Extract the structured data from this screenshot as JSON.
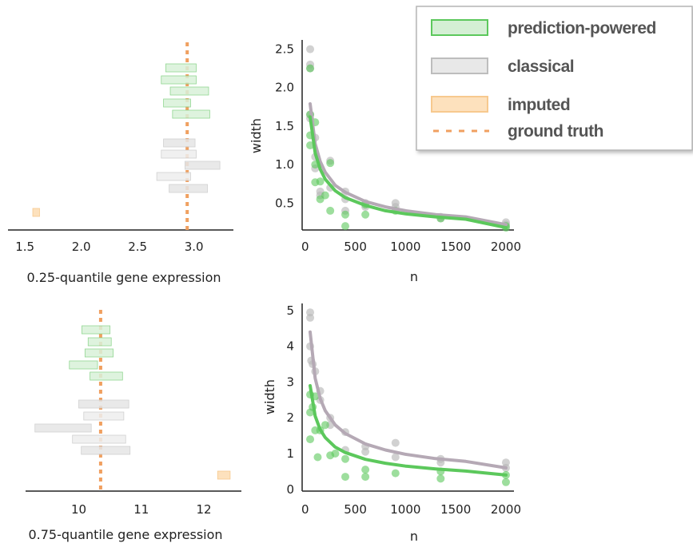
{
  "colors": {
    "ppi": "#5cc85c",
    "classical": "#b0b0b0",
    "imputed": "#f7b562",
    "truth": "#f0a060"
  },
  "legend": {
    "items": [
      {
        "key": "ppi",
        "label": "prediction-powered"
      },
      {
        "key": "classical",
        "label": "classical"
      },
      {
        "key": "imputed",
        "label": "imputed"
      },
      {
        "key": "truth",
        "label": "ground truth"
      }
    ]
  },
  "chart_data": [
    {
      "type": "interval",
      "panel": "q25-intervals",
      "xlabel": "0.25-quantile gene expression",
      "xticks": [
        1.5,
        2.0,
        2.5,
        3.0
      ],
      "xlim": [
        1.35,
        3.35
      ],
      "ground_truth": 2.94,
      "ppi": [
        [
          2.75,
          3.02
        ],
        [
          2.71,
          3.02
        ],
        [
          2.79,
          3.13
        ],
        [
          2.73,
          2.97
        ],
        [
          2.81,
          3.14
        ]
      ],
      "classical": [
        [
          2.73,
          3.01
        ],
        [
          2.71,
          3.02
        ],
        [
          2.92,
          3.23
        ],
        [
          2.67,
          2.97
        ],
        [
          2.78,
          3.12
        ]
      ],
      "imputed": [
        [
          1.57,
          1.63
        ]
      ]
    },
    {
      "type": "scatter+line",
      "panel": "q25-width",
      "xlabel": "n",
      "ylabel": "width",
      "xticks": [
        0,
        500,
        1000,
        1500,
        2000
      ],
      "yticks": [
        0.5,
        1.0,
        1.5,
        2.0,
        2.5
      ],
      "xlim": [
        -30,
        2080
      ],
      "ylim": [
        0.15,
        2.62
      ],
      "n": [
        50,
        100,
        150,
        250,
        400,
        600,
        900,
        1350,
        2000
      ],
      "classical_points": [
        [
          50,
          2.5
        ],
        [
          50,
          2.3
        ],
        [
          50,
          1.65
        ],
        [
          50,
          2.25
        ],
        [
          50,
          1.6
        ],
        [
          100,
          1.35
        ],
        [
          100,
          1.1
        ],
        [
          100,
          0.95
        ],
        [
          150,
          0.65
        ],
        [
          150,
          0.6
        ],
        [
          250,
          1.05
        ],
        [
          250,
          0.7
        ],
        [
          400,
          0.55
        ],
        [
          400,
          0.65
        ],
        [
          400,
          0.4
        ],
        [
          600,
          0.5
        ],
        [
          600,
          0.45
        ],
        [
          900,
          0.5
        ],
        [
          900,
          0.45
        ],
        [
          1350,
          0.3
        ],
        [
          1350,
          0.32
        ],
        [
          2000,
          0.22
        ],
        [
          2000,
          0.25
        ]
      ],
      "ppi_points": [
        [
          50,
          2.25
        ],
        [
          50,
          1.25
        ],
        [
          50,
          1.65
        ],
        [
          50,
          1.38
        ],
        [
          100,
          0.77
        ],
        [
          100,
          1.0
        ],
        [
          100,
          1.55
        ],
        [
          150,
          0.55
        ],
        [
          150,
          0.78
        ],
        [
          200,
          0.6
        ],
        [
          250,
          1.02
        ],
        [
          250,
          0.4
        ],
        [
          400,
          0.2
        ],
        [
          400,
          0.35
        ],
        [
          600,
          0.35
        ],
        [
          600,
          0.48
        ],
        [
          900,
          0.4
        ],
        [
          1350,
          0.3
        ],
        [
          2000,
          0.18
        ],
        [
          2000,
          0.2
        ]
      ],
      "classical_curve": [
        [
          50,
          1.79
        ],
        [
          100,
          1.27
        ],
        [
          150,
          1.04
        ],
        [
          200,
          0.9
        ],
        [
          300,
          0.73
        ],
        [
          400,
          0.64
        ],
        [
          600,
          0.52
        ],
        [
          800,
          0.45
        ],
        [
          1000,
          0.4
        ],
        [
          1300,
          0.35
        ],
        [
          1600,
          0.32
        ],
        [
          2000,
          0.22
        ]
      ],
      "ppi_curve": [
        [
          50,
          1.62
        ],
        [
          100,
          1.15
        ],
        [
          150,
          0.94
        ],
        [
          200,
          0.81
        ],
        [
          300,
          0.66
        ],
        [
          400,
          0.57
        ],
        [
          600,
          0.47
        ],
        [
          800,
          0.4
        ],
        [
          1000,
          0.36
        ],
        [
          1300,
          0.32
        ],
        [
          1600,
          0.29
        ],
        [
          2000,
          0.18
        ]
      ]
    },
    {
      "type": "interval",
      "panel": "q75-intervals",
      "xlabel": "0.75-quantile gene expression",
      "xticks": [
        10,
        11,
        12
      ],
      "xlim": [
        9.15,
        12.6
      ],
      "ground_truth": 10.35,
      "ppi": [
        [
          10.05,
          10.5
        ],
        [
          10.15,
          10.52
        ],
        [
          10.1,
          10.55
        ],
        [
          9.85,
          10.3
        ],
        [
          10.18,
          10.7
        ]
      ],
      "classical": [
        [
          10.0,
          10.8
        ],
        [
          10.08,
          10.72
        ],
        [
          9.3,
          10.2
        ],
        [
          9.9,
          10.75
        ],
        [
          10.04,
          10.82
        ]
      ],
      "imputed": [
        [
          12.22,
          12.42
        ]
      ]
    },
    {
      "type": "scatter+line",
      "panel": "q75-width",
      "xlabel": "n",
      "ylabel": "width",
      "xticks": [
        0,
        500,
        1000,
        1500,
        2000
      ],
      "yticks": [
        0,
        1,
        2,
        3,
        4,
        5
      ],
      "xlim": [
        -30,
        2080
      ],
      "ylim": [
        -0.05,
        5.2
      ],
      "n": [
        50,
        100,
        150,
        250,
        400,
        600,
        900,
        1350,
        2000
      ],
      "classical_points": [
        [
          50,
          4.95
        ],
        [
          50,
          4.8
        ],
        [
          50,
          4.0
        ],
        [
          60,
          3.6
        ],
        [
          75,
          3.5
        ],
        [
          100,
          3.3
        ],
        [
          150,
          2.75
        ],
        [
          150,
          2.5
        ],
        [
          250,
          2.0
        ],
        [
          250,
          1.8
        ],
        [
          400,
          1.6
        ],
        [
          400,
          1.1
        ],
        [
          600,
          1.2
        ],
        [
          600,
          1.05
        ],
        [
          900,
          1.3
        ],
        [
          900,
          0.9
        ],
        [
          1350,
          0.85
        ],
        [
          1350,
          0.75
        ],
        [
          2000,
          0.75
        ],
        [
          2000,
          0.6
        ]
      ],
      "ppi_points": [
        [
          50,
          2.65
        ],
        [
          50,
          2.15
        ],
        [
          50,
          1.4
        ],
        [
          75,
          2.3
        ],
        [
          100,
          1.65
        ],
        [
          100,
          2.6
        ],
        [
          125,
          0.9
        ],
        [
          150,
          1.65
        ],
        [
          200,
          1.8
        ],
        [
          250,
          0.95
        ],
        [
          300,
          1.0
        ],
        [
          400,
          0.85
        ],
        [
          400,
          0.35
        ],
        [
          600,
          0.35
        ],
        [
          600,
          0.55
        ],
        [
          900,
          0.45
        ],
        [
          1350,
          0.5
        ],
        [
          1350,
          0.3
        ],
        [
          2000,
          0.4
        ],
        [
          2000,
          0.2
        ]
      ],
      "classical_curve": [
        [
          50,
          4.4
        ],
        [
          100,
          3.11
        ],
        [
          150,
          2.54
        ],
        [
          200,
          2.2
        ],
        [
          300,
          1.8
        ],
        [
          400,
          1.56
        ],
        [
          600,
          1.27
        ],
        [
          800,
          1.1
        ],
        [
          1000,
          0.98
        ],
        [
          1300,
          0.86
        ],
        [
          1600,
          0.78
        ],
        [
          2000,
          0.6
        ]
      ],
      "ppi_curve": [
        [
          50,
          2.9
        ],
        [
          100,
          2.05
        ],
        [
          150,
          1.67
        ],
        [
          200,
          1.45
        ],
        [
          300,
          1.18
        ],
        [
          400,
          1.03
        ],
        [
          600,
          0.84
        ],
        [
          800,
          0.73
        ],
        [
          1000,
          0.65
        ],
        [
          1300,
          0.57
        ],
        [
          1600,
          0.51
        ],
        [
          2000,
          0.4
        ]
      ]
    }
  ]
}
